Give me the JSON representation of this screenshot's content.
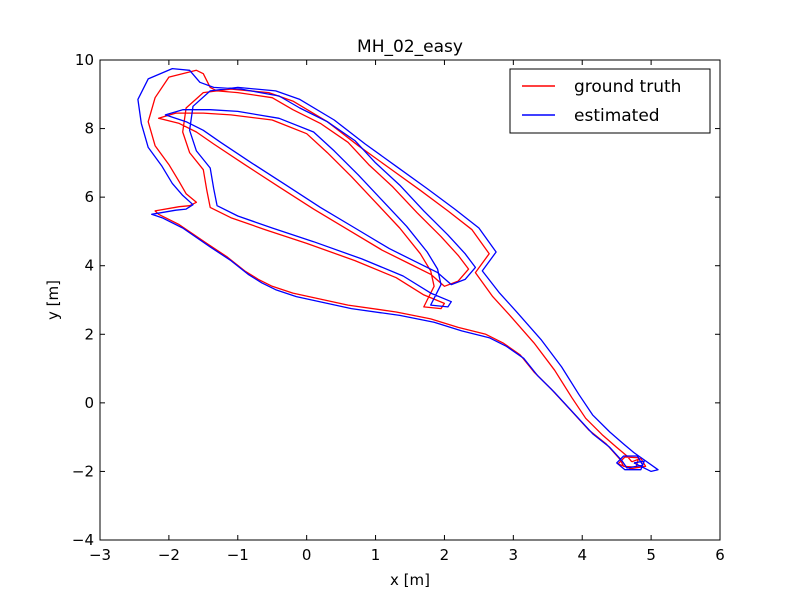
{
  "chart_data": {
    "type": "line",
    "title": "MH_02_easy",
    "xlabel": "x [m]",
    "ylabel": "y [m]",
    "xlim": [
      -3,
      6
    ],
    "ylim": [
      -4,
      10
    ],
    "xticks": [
      -3,
      -2,
      -1,
      0,
      1,
      2,
      3,
      4,
      5,
      6
    ],
    "yticks": [
      -4,
      -2,
      0,
      2,
      4,
      6,
      8,
      10
    ],
    "xtick_labels": [
      "−3",
      "−2",
      "−1",
      "0",
      "1",
      "2",
      "3",
      "4",
      "5",
      "6"
    ],
    "ytick_labels": [
      "−4",
      "−2",
      "0",
      "2",
      "4",
      "6",
      "8",
      "10"
    ],
    "grid": false,
    "legend_position": "top-right",
    "series": [
      {
        "name": "ground truth",
        "color": "#ff0000",
        "points": [
          [
            4.72,
            -1.72
          ],
          [
            4.85,
            -1.62
          ],
          [
            4.92,
            -1.85
          ],
          [
            4.7,
            -1.92
          ],
          [
            4.52,
            -1.78
          ],
          [
            4.62,
            -1.58
          ],
          [
            4.82,
            -1.6
          ],
          [
            4.78,
            -1.88
          ],
          [
            4.6,
            -1.85
          ],
          [
            4.55,
            -1.65
          ],
          [
            4.35,
            -1.2
          ],
          [
            4.1,
            -0.8
          ],
          [
            3.85,
            -0.25
          ],
          [
            3.55,
            0.4
          ],
          [
            3.3,
            0.9
          ],
          [
            3.1,
            1.4
          ],
          [
            2.85,
            1.75
          ],
          [
            2.6,
            2.0
          ],
          [
            2.2,
            2.2
          ],
          [
            1.8,
            2.45
          ],
          [
            1.3,
            2.65
          ],
          [
            0.6,
            2.85
          ],
          [
            -0.2,
            3.2
          ],
          [
            -0.5,
            3.4
          ],
          [
            -0.7,
            3.6
          ],
          [
            -0.9,
            3.85
          ],
          [
            -1.15,
            4.25
          ],
          [
            -1.45,
            4.65
          ],
          [
            -1.85,
            5.2
          ],
          [
            -2.15,
            5.5
          ],
          [
            -2.2,
            5.6
          ],
          [
            -1.85,
            5.72
          ],
          [
            -1.7,
            5.75
          ],
          [
            -1.6,
            5.85
          ],
          [
            -1.75,
            6.1
          ],
          [
            -1.85,
            6.45
          ],
          [
            -2.0,
            6.95
          ],
          [
            -2.2,
            7.5
          ],
          [
            -2.3,
            8.2
          ],
          [
            -2.2,
            8.9
          ],
          [
            -2.0,
            9.5
          ],
          [
            -1.6,
            9.7
          ],
          [
            -1.5,
            9.6
          ],
          [
            -1.4,
            9.2
          ],
          [
            -1.3,
            9.1
          ],
          [
            -1.0,
            9.05
          ],
          [
            -0.5,
            8.9
          ],
          [
            -0.2,
            8.55
          ],
          [
            0.2,
            8.15
          ],
          [
            0.6,
            7.6
          ],
          [
            0.9,
            6.95
          ],
          [
            1.25,
            6.3
          ],
          [
            1.6,
            5.55
          ],
          [
            1.95,
            4.85
          ],
          [
            2.2,
            4.3
          ],
          [
            2.35,
            3.9
          ],
          [
            2.2,
            3.55
          ],
          [
            2.0,
            3.4
          ],
          [
            1.8,
            3.75
          ],
          [
            1.5,
            4.05
          ],
          [
            1.1,
            4.45
          ],
          [
            0.6,
            5.05
          ],
          [
            0.1,
            5.65
          ],
          [
            -0.4,
            6.3
          ],
          [
            -0.9,
            6.95
          ],
          [
            -1.35,
            7.55
          ],
          [
            -1.6,
            7.9
          ],
          [
            -1.85,
            8.15
          ],
          [
            -2.15,
            8.3
          ],
          [
            -1.9,
            8.45
          ],
          [
            -1.5,
            8.45
          ],
          [
            -1.1,
            8.4
          ],
          [
            -0.5,
            8.25
          ],
          [
            0.0,
            7.85
          ],
          [
            0.3,
            7.3
          ],
          [
            0.65,
            6.6
          ],
          [
            1.0,
            5.85
          ],
          [
            1.35,
            5.1
          ],
          [
            1.65,
            4.35
          ],
          [
            1.8,
            3.85
          ],
          [
            1.85,
            3.4
          ],
          [
            1.75,
            3.0
          ],
          [
            1.7,
            2.8
          ],
          [
            1.95,
            2.75
          ],
          [
            2.0,
            2.9
          ],
          [
            1.7,
            3.15
          ],
          [
            1.3,
            3.65
          ],
          [
            0.7,
            4.15
          ],
          [
            0.0,
            4.65
          ],
          [
            -0.6,
            5.05
          ],
          [
            -1.1,
            5.4
          ],
          [
            -1.4,
            5.7
          ],
          [
            -1.45,
            6.2
          ],
          [
            -1.5,
            6.8
          ],
          [
            -1.7,
            7.3
          ],
          [
            -1.8,
            7.9
          ],
          [
            -1.75,
            8.6
          ],
          [
            -1.5,
            9.05
          ],
          [
            -1.1,
            9.15
          ],
          [
            -0.55,
            9.05
          ],
          [
            -0.2,
            8.8
          ],
          [
            0.3,
            8.2
          ],
          [
            0.75,
            7.5
          ],
          [
            1.2,
            6.85
          ],
          [
            1.65,
            6.2
          ],
          [
            2.05,
            5.6
          ],
          [
            2.4,
            5.05
          ],
          [
            2.65,
            4.35
          ],
          [
            2.45,
            3.8
          ],
          [
            2.7,
            3.1
          ],
          [
            2.95,
            2.55
          ],
          [
            3.3,
            1.75
          ],
          [
            3.6,
            0.95
          ],
          [
            3.85,
            0.15
          ],
          [
            4.05,
            -0.45
          ],
          [
            4.3,
            -0.95
          ],
          [
            4.5,
            -1.3
          ],
          [
            4.65,
            -1.55
          ],
          [
            4.72,
            -1.72
          ]
        ]
      },
      {
        "name": "estimated",
        "color": "#0000ff",
        "points": [
          [
            4.75,
            -1.75
          ],
          [
            4.9,
            -1.7
          ],
          [
            4.85,
            -1.95
          ],
          [
            4.62,
            -1.95
          ],
          [
            4.5,
            -1.75
          ],
          [
            4.6,
            -1.55
          ],
          [
            4.8,
            -1.55
          ],
          [
            4.88,
            -1.82
          ],
          [
            4.65,
            -1.9
          ],
          [
            4.58,
            -1.7
          ],
          [
            4.4,
            -1.3
          ],
          [
            4.15,
            -0.9
          ],
          [
            3.9,
            -0.35
          ],
          [
            3.6,
            0.3
          ],
          [
            3.35,
            0.8
          ],
          [
            3.15,
            1.3
          ],
          [
            2.9,
            1.65
          ],
          [
            2.65,
            1.9
          ],
          [
            2.25,
            2.1
          ],
          [
            1.85,
            2.35
          ],
          [
            1.35,
            2.55
          ],
          [
            0.65,
            2.75
          ],
          [
            -0.15,
            3.1
          ],
          [
            -0.45,
            3.3
          ],
          [
            -0.65,
            3.5
          ],
          [
            -0.85,
            3.75
          ],
          [
            -1.1,
            4.15
          ],
          [
            -1.4,
            4.55
          ],
          [
            -1.8,
            5.1
          ],
          [
            -2.1,
            5.4
          ],
          [
            -2.25,
            5.5
          ],
          [
            -1.9,
            5.62
          ],
          [
            -1.75,
            5.65
          ],
          [
            -1.65,
            5.78
          ],
          [
            -1.8,
            6.05
          ],
          [
            -1.95,
            6.4
          ],
          [
            -2.1,
            6.9
          ],
          [
            -2.3,
            7.45
          ],
          [
            -2.4,
            8.15
          ],
          [
            -2.45,
            8.85
          ],
          [
            -2.3,
            9.45
          ],
          [
            -1.95,
            9.75
          ],
          [
            -1.7,
            9.7
          ],
          [
            -1.55,
            9.35
          ],
          [
            -1.35,
            9.2
          ],
          [
            -0.95,
            9.15
          ],
          [
            -0.4,
            8.95
          ],
          [
            -0.1,
            8.6
          ],
          [
            0.3,
            8.2
          ],
          [
            0.7,
            7.65
          ],
          [
            1.0,
            7.0
          ],
          [
            1.35,
            6.35
          ],
          [
            1.7,
            5.6
          ],
          [
            2.05,
            4.9
          ],
          [
            2.3,
            4.35
          ],
          [
            2.45,
            3.95
          ],
          [
            2.3,
            3.6
          ],
          [
            2.1,
            3.45
          ],
          [
            1.9,
            3.8
          ],
          [
            1.6,
            4.1
          ],
          [
            1.2,
            4.5
          ],
          [
            0.7,
            5.1
          ],
          [
            0.2,
            5.7
          ],
          [
            -0.3,
            6.35
          ],
          [
            -0.8,
            7.0
          ],
          [
            -1.25,
            7.6
          ],
          [
            -1.5,
            7.95
          ],
          [
            -1.75,
            8.2
          ],
          [
            -2.05,
            8.4
          ],
          [
            -1.8,
            8.55
          ],
          [
            -1.4,
            8.55
          ],
          [
            -1.0,
            8.5
          ],
          [
            -0.4,
            8.3
          ],
          [
            0.1,
            7.9
          ],
          [
            0.4,
            7.35
          ],
          [
            0.75,
            6.65
          ],
          [
            1.1,
            5.9
          ],
          [
            1.45,
            5.15
          ],
          [
            1.75,
            4.4
          ],
          [
            1.9,
            3.9
          ],
          [
            1.95,
            3.45
          ],
          [
            1.85,
            3.05
          ],
          [
            1.8,
            2.85
          ],
          [
            2.05,
            2.8
          ],
          [
            2.1,
            2.95
          ],
          [
            1.8,
            3.2
          ],
          [
            1.4,
            3.7
          ],
          [
            0.8,
            4.2
          ],
          [
            0.1,
            4.7
          ],
          [
            -0.5,
            5.1
          ],
          [
            -1.0,
            5.45
          ],
          [
            -1.3,
            5.75
          ],
          [
            -1.35,
            6.25
          ],
          [
            -1.4,
            6.85
          ],
          [
            -1.6,
            7.35
          ],
          [
            -1.7,
            7.95
          ],
          [
            -1.65,
            8.65
          ],
          [
            -1.4,
            9.1
          ],
          [
            -1.0,
            9.2
          ],
          [
            -0.45,
            9.1
          ],
          [
            -0.1,
            8.85
          ],
          [
            0.4,
            8.25
          ],
          [
            0.85,
            7.55
          ],
          [
            1.3,
            6.9
          ],
          [
            1.75,
            6.25
          ],
          [
            2.15,
            5.65
          ],
          [
            2.5,
            5.1
          ],
          [
            2.75,
            4.4
          ],
          [
            2.55,
            3.85
          ],
          [
            2.8,
            3.2
          ],
          [
            3.05,
            2.65
          ],
          [
            3.4,
            1.85
          ],
          [
            3.7,
            1.05
          ],
          [
            3.95,
            0.25
          ],
          [
            4.15,
            -0.35
          ],
          [
            4.4,
            -0.85
          ],
          [
            4.6,
            -1.2
          ],
          [
            4.75,
            -1.45
          ],
          [
            5.1,
            -1.95
          ],
          [
            5.0,
            -2.0
          ],
          [
            4.75,
            -1.75
          ]
        ]
      }
    ]
  }
}
